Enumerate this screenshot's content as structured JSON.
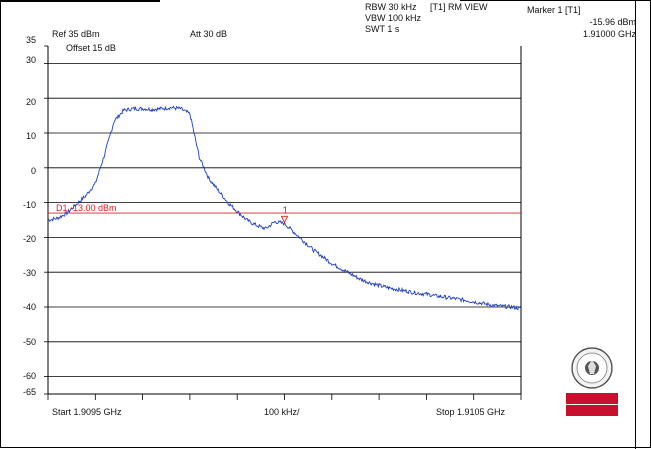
{
  "header": {
    "rbw": "RBW 30 kHz",
    "vbw": "VBW 100 kHz",
    "swt": "SWT 1 s",
    "view": "[T1] RM VIEW",
    "marker_title": "Marker 1 [T1]",
    "marker_level": "-15.96 dBm",
    "marker_freq": "1.91000 GHz",
    "ref": "Ref 35 dBm",
    "att": "Att  30 dB",
    "offset": "Offset 15 dB"
  },
  "footer": {
    "start": "Start 1.9095 GHz",
    "span": "100 kHz/",
    "stop": "Stop 1.9105 GHz"
  },
  "logo": {
    "text_line1": "B U R E A U",
    "text_line2": "V E R I T A S",
    "seal_year": "1828",
    "seal_text": "BUREAU VERITAS",
    "color": "#c8102e"
  },
  "chart_data": {
    "type": "line",
    "ylim": [
      -65,
      35
    ],
    "xlim": [
      1.9095,
      1.9105
    ],
    "x_unit": "GHz",
    "y_unit": "dBm",
    "yticks": [
      35,
      30,
      20,
      10,
      0,
      -10,
      -20,
      -30,
      -40,
      -50,
      -60,
      -65
    ],
    "display_line": {
      "label": "D1 -13.00 dBm",
      "y": -13.0,
      "color": "#e02020"
    },
    "marker": {
      "label": "1",
      "x": 1.91,
      "y": -15.96,
      "color": "#e02020"
    },
    "series": [
      {
        "color": "#1f3fbf",
        "x": [
          1.9095,
          1.90952,
          1.90954,
          1.90956,
          1.90958,
          1.9096,
          1.90962,
          1.90964,
          1.90966,
          1.90968,
          1.9097,
          1.90972,
          1.90974,
          1.90976,
          1.90978,
          1.9098,
          1.90982,
          1.90984,
          1.90986,
          1.90988,
          1.9099,
          1.90992,
          1.90994,
          1.90996,
          1.90998,
          1.91,
          1.91002,
          1.91004,
          1.91006,
          1.91008,
          1.9101,
          1.91012,
          1.91014,
          1.91016,
          1.91018,
          1.9102,
          1.91022,
          1.91024,
          1.91026,
          1.91028,
          1.9103,
          1.91032,
          1.91034,
          1.91036,
          1.91038,
          1.9104,
          1.91042,
          1.91044,
          1.91046,
          1.91048,
          1.9105
        ],
        "y": [
          -15.0,
          -14.5,
          -13.0,
          -10.5,
          -8.0,
          -4.5,
          4.0,
          13.5,
          16.5,
          17.0,
          17.0,
          16.8,
          17.0,
          17.3,
          17.0,
          15.5,
          3.0,
          -3.0,
          -6.5,
          -10.0,
          -12.5,
          -15.0,
          -16.5,
          -17.5,
          -15.5,
          -16.0,
          -18.5,
          -21.0,
          -23.5,
          -25.5,
          -27.5,
          -29.0,
          -30.5,
          -32.0,
          -33.0,
          -33.8,
          -34.5,
          -35.0,
          -35.5,
          -36.0,
          -36.3,
          -36.8,
          -37.2,
          -37.6,
          -38.0,
          -38.5,
          -39.0,
          -39.5,
          -39.8,
          -40.0,
          -40.5
        ]
      }
    ]
  }
}
